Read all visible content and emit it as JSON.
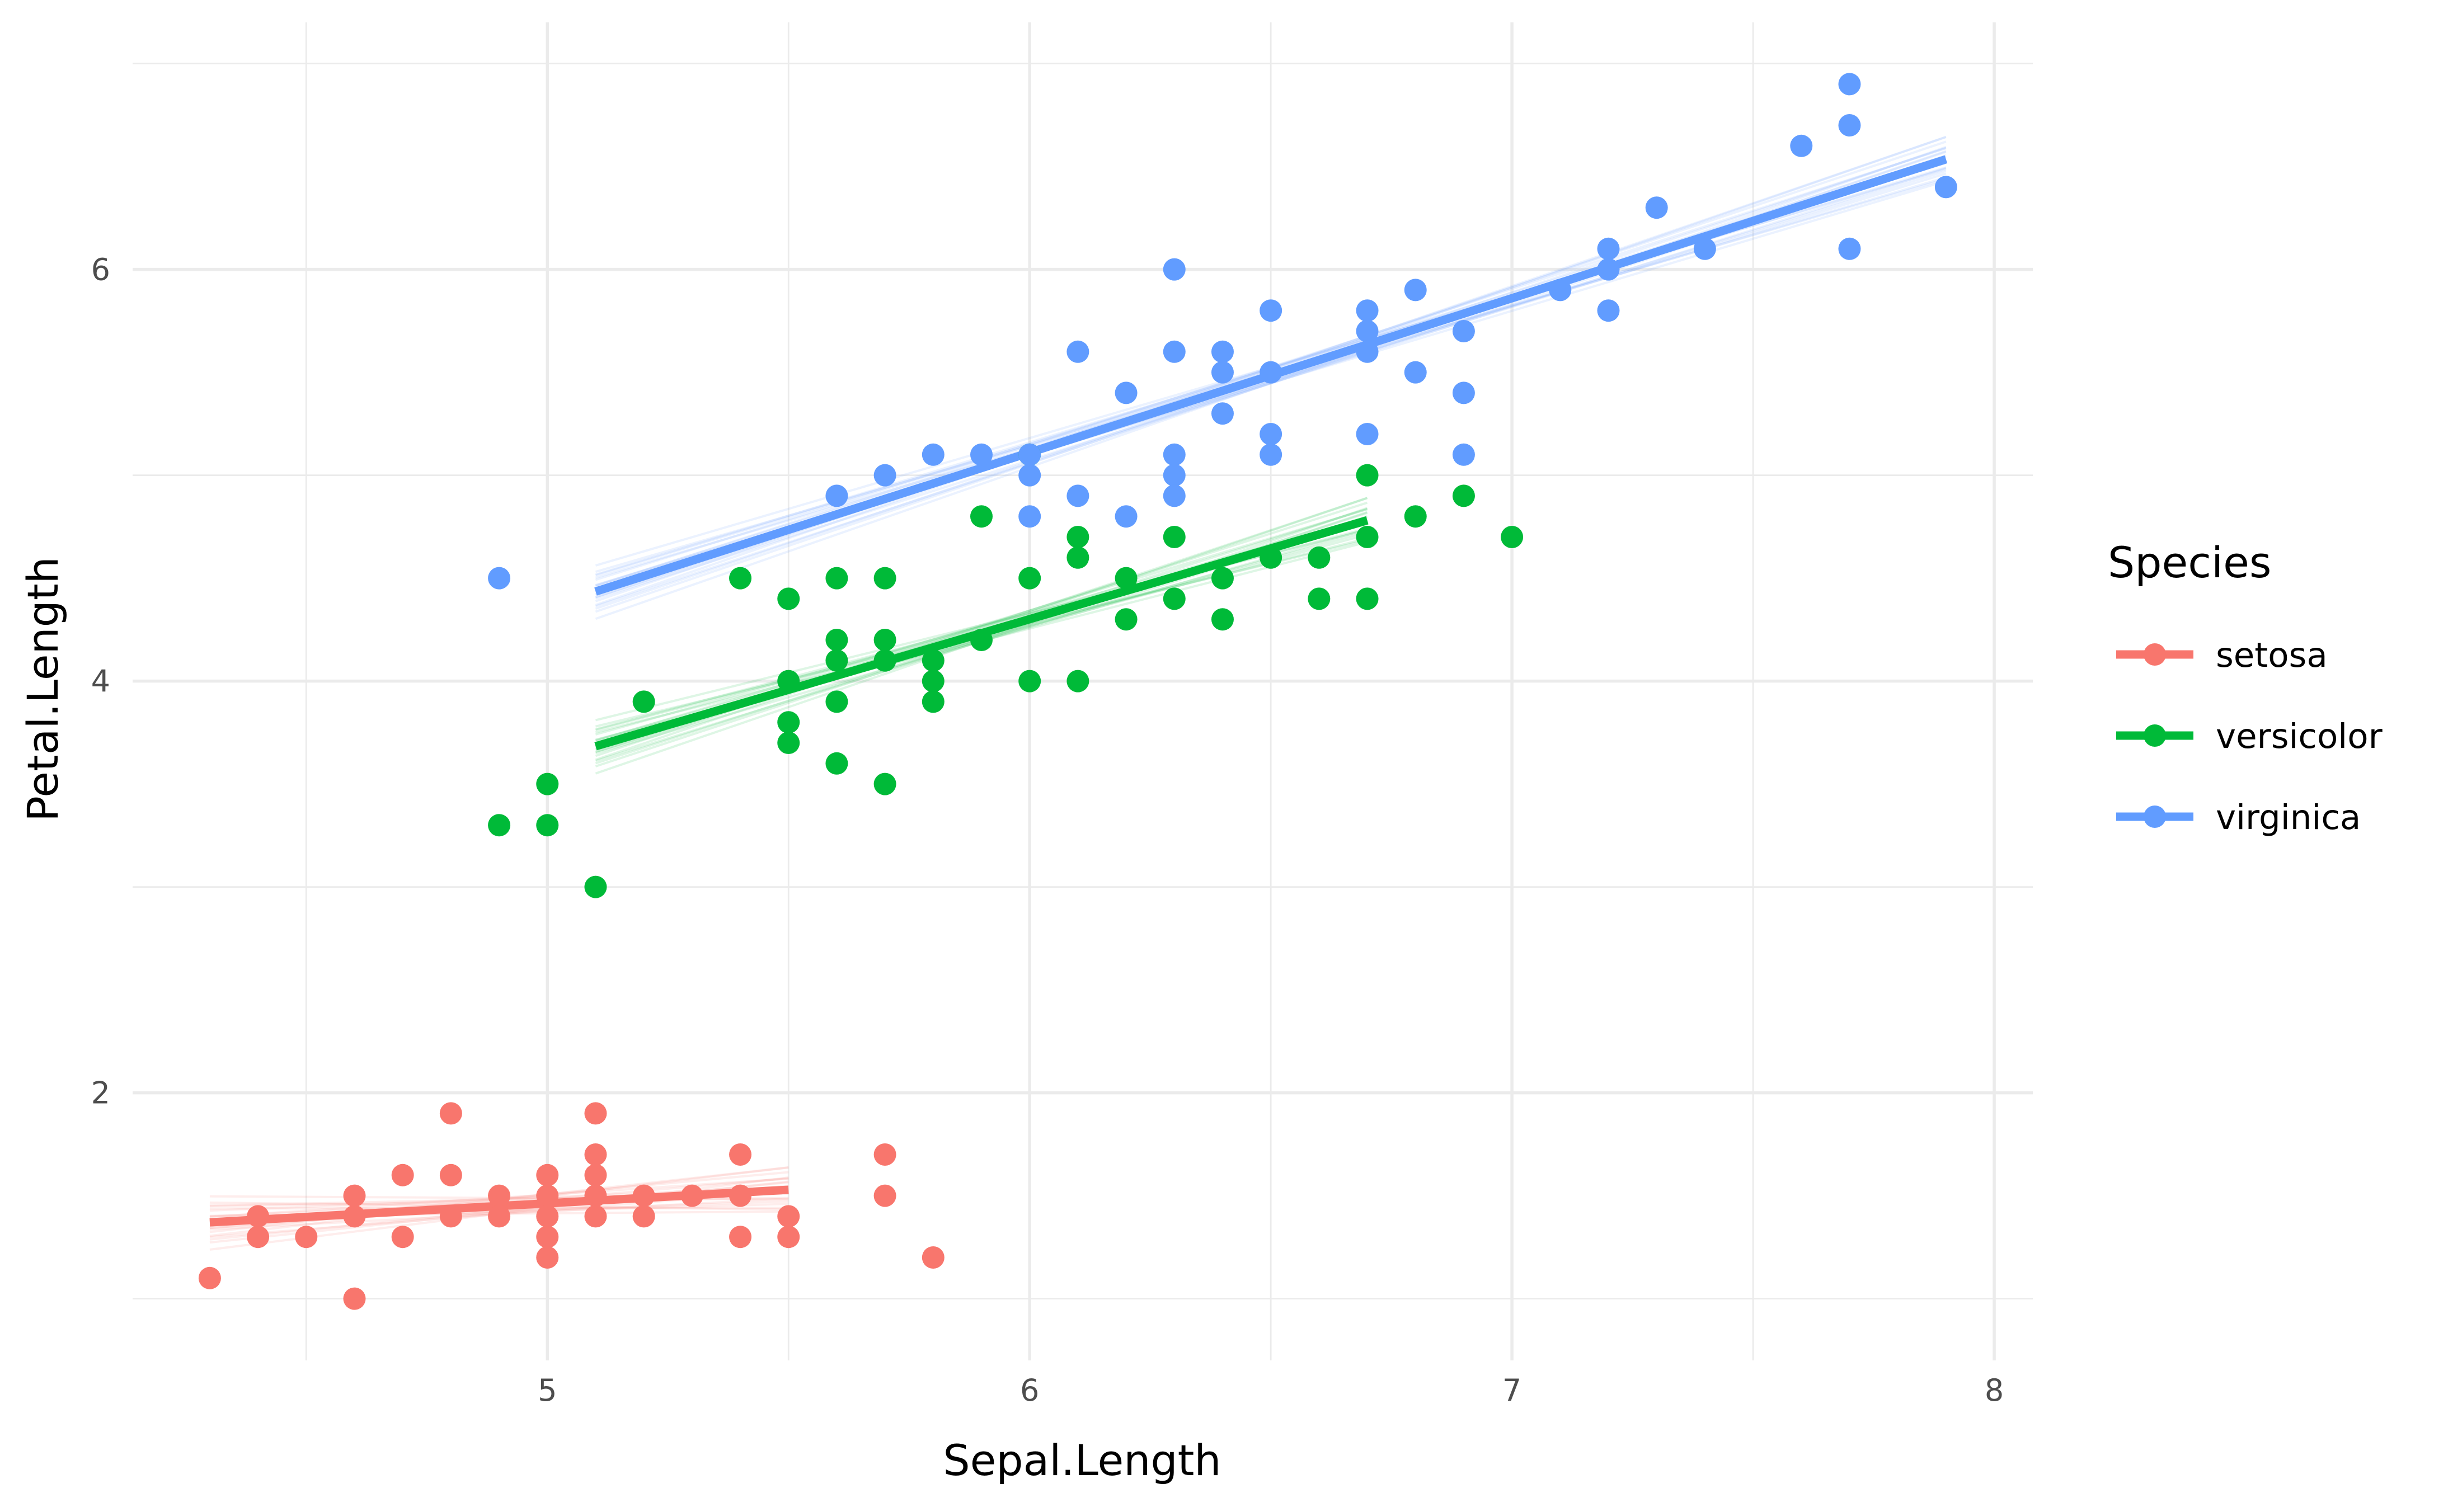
{
  "chart_data": {
    "type": "scatter",
    "title": "",
    "xlabel": "Sepal.Length",
    "ylabel": "Petal.Length",
    "xlim": [
      4.14,
      8.08
    ],
    "ylim": [
      0.7,
      7.2
    ],
    "x_ticks": [
      5,
      6,
      7,
      8
    ],
    "x_tick_labels": [
      "5",
      "6",
      "7",
      "8"
    ],
    "y_ticks": [
      2,
      4,
      6
    ],
    "y_tick_labels": [
      "2",
      "4",
      "6"
    ],
    "x_minor": [
      4.5,
      5.5,
      6.5,
      7.5
    ],
    "y_minor": [
      1,
      3,
      5,
      7
    ],
    "grid": true,
    "legend": {
      "title": "Species",
      "position": "right"
    },
    "series": [
      {
        "name": "setosa",
        "color": "#F8766D",
        "points": [
          [
            4.3,
            1.1
          ],
          [
            4.4,
            1.4
          ],
          [
            4.4,
            1.3
          ],
          [
            4.5,
            1.3
          ],
          [
            4.6,
            1.5
          ],
          [
            4.6,
            1.4
          ],
          [
            4.6,
            1.0
          ],
          [
            4.7,
            1.6
          ],
          [
            4.7,
            1.3
          ],
          [
            4.8,
            1.9
          ],
          [
            4.8,
            1.6
          ],
          [
            4.8,
            1.4
          ],
          [
            4.9,
            1.5
          ],
          [
            4.9,
            1.4
          ],
          [
            5.0,
            1.6
          ],
          [
            5.0,
            1.5
          ],
          [
            5.0,
            1.4
          ],
          [
            5.0,
            1.3
          ],
          [
            5.0,
            1.2
          ],
          [
            5.1,
            1.9
          ],
          [
            5.1,
            1.7
          ],
          [
            5.1,
            1.6
          ],
          [
            5.1,
            1.5
          ],
          [
            5.1,
            1.4
          ],
          [
            5.2,
            1.5
          ],
          [
            5.2,
            1.4
          ],
          [
            5.3,
            1.5
          ],
          [
            5.4,
            1.7
          ],
          [
            5.4,
            1.5
          ],
          [
            5.4,
            1.3
          ],
          [
            5.5,
            1.4
          ],
          [
            5.5,
            1.3
          ],
          [
            5.7,
            1.7
          ],
          [
            5.7,
            1.5
          ],
          [
            5.8,
            1.2
          ]
        ],
        "fit": {
          "x_range": [
            4.3,
            5.5
          ],
          "intercept": 0.803,
          "slope": 0.132
        }
      },
      {
        "name": "versicolor",
        "color": "#00BA38",
        "points": [
          [
            4.9,
            3.3
          ],
          [
            5.0,
            3.5
          ],
          [
            5.0,
            3.3
          ],
          [
            5.1,
            3.0
          ],
          [
            5.2,
            3.9
          ],
          [
            5.4,
            4.5
          ],
          [
            5.5,
            4.4
          ],
          [
            5.5,
            4.0
          ],
          [
            5.5,
            3.8
          ],
          [
            5.5,
            3.7
          ],
          [
            5.6,
            4.5
          ],
          [
            5.6,
            4.2
          ],
          [
            5.6,
            4.1
          ],
          [
            5.6,
            3.9
          ],
          [
            5.6,
            3.6
          ],
          [
            5.7,
            4.5
          ],
          [
            5.7,
            4.2
          ],
          [
            5.7,
            4.1
          ],
          [
            5.7,
            3.5
          ],
          [
            5.8,
            4.1
          ],
          [
            5.8,
            4.0
          ],
          [
            5.8,
            3.9
          ],
          [
            5.9,
            4.8
          ],
          [
            5.9,
            4.2
          ],
          [
            6.0,
            5.1
          ],
          [
            6.0,
            4.5
          ],
          [
            6.0,
            4.0
          ],
          [
            6.1,
            4.7
          ],
          [
            6.1,
            4.6
          ],
          [
            6.1,
            4.0
          ],
          [
            6.2,
            4.5
          ],
          [
            6.2,
            4.3
          ],
          [
            6.3,
            4.7
          ],
          [
            6.3,
            4.4
          ],
          [
            6.4,
            4.5
          ],
          [
            6.4,
            4.3
          ],
          [
            6.5,
            4.6
          ],
          [
            6.6,
            4.6
          ],
          [
            6.6,
            4.4
          ],
          [
            6.7,
            5.0
          ],
          [
            6.7,
            4.7
          ],
          [
            6.7,
            4.4
          ],
          [
            6.8,
            4.8
          ],
          [
            6.9,
            4.9
          ],
          [
            7.0,
            4.7
          ]
        ],
        "fit": {
          "x_range": [
            5.1,
            6.7
          ],
          "intercept": 0.185,
          "slope": 0.686
        }
      },
      {
        "name": "virginica",
        "color": "#619CFF",
        "points": [
          [
            4.9,
            4.5
          ],
          [
            5.6,
            4.9
          ],
          [
            5.7,
            5.0
          ],
          [
            5.8,
            5.1
          ],
          [
            5.9,
            5.1
          ],
          [
            6.0,
            5.1
          ],
          [
            6.0,
            5.0
          ],
          [
            6.0,
            4.8
          ],
          [
            6.1,
            5.6
          ],
          [
            6.1,
            4.9
          ],
          [
            6.2,
            5.4
          ],
          [
            6.2,
            4.8
          ],
          [
            6.3,
            6.0
          ],
          [
            6.3,
            5.6
          ],
          [
            6.3,
            5.1
          ],
          [
            6.3,
            5.0
          ],
          [
            6.3,
            4.9
          ],
          [
            6.4,
            5.6
          ],
          [
            6.4,
            5.5
          ],
          [
            6.4,
            5.3
          ],
          [
            6.5,
            5.8
          ],
          [
            6.5,
            5.5
          ],
          [
            6.5,
            5.2
          ],
          [
            6.5,
            5.1
          ],
          [
            6.7,
            5.8
          ],
          [
            6.7,
            5.7
          ],
          [
            6.7,
            5.6
          ],
          [
            6.7,
            5.2
          ],
          [
            6.8,
            5.9
          ],
          [
            6.8,
            5.5
          ],
          [
            6.9,
            5.7
          ],
          [
            6.9,
            5.4
          ],
          [
            6.9,
            5.1
          ],
          [
            7.1,
            5.9
          ],
          [
            7.2,
            6.1
          ],
          [
            7.2,
            6.0
          ],
          [
            7.2,
            5.8
          ],
          [
            7.3,
            6.3
          ],
          [
            7.4,
            6.1
          ],
          [
            7.6,
            6.6
          ],
          [
            7.7,
            6.9
          ],
          [
            7.7,
            6.7
          ],
          [
            7.7,
            6.1
          ],
          [
            7.9,
            6.4
          ]
        ],
        "fit": {
          "x_range": [
            5.1,
            7.9
          ],
          "intercept": 0.61,
          "slope": 0.75
        }
      }
    ]
  }
}
